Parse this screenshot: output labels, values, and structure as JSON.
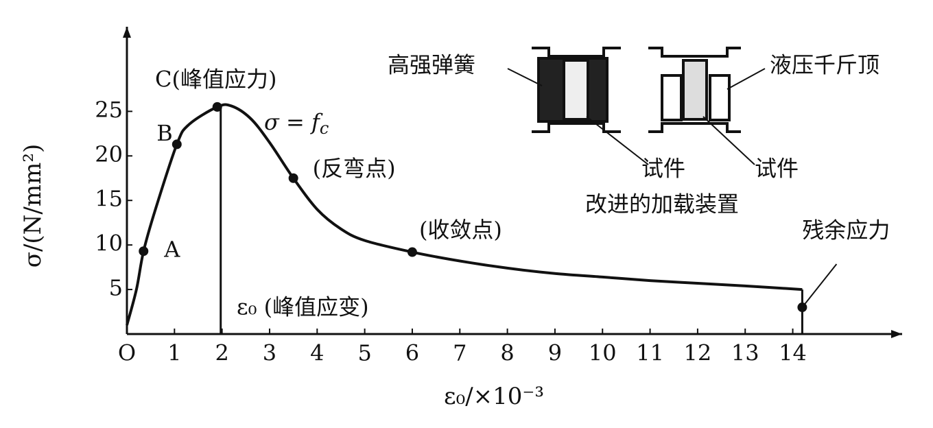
{
  "chart_data": {
    "type": "line",
    "x_label": "ε₀/×10⁻³",
    "y_label": "σ/(N/mm²)",
    "xlim": [
      0,
      16.3
    ],
    "ylim": [
      0,
      34.5
    ],
    "xticks": [
      {
        "value": 0,
        "label": "O"
      },
      1,
      2,
      3,
      4,
      5,
      6,
      7,
      8,
      9,
      10,
      11,
      12,
      13,
      14
    ],
    "yticks": [
      5,
      10,
      15,
      20,
      25
    ],
    "color": "#111111",
    "x": [
      0,
      0.2,
      0.35,
      0.6,
      1.05,
      1.3,
      1.9,
      2.2,
      2.6,
      3,
      3.5,
      4,
      4.5,
      5,
      6,
      7,
      8,
      9,
      10,
      11,
      12,
      13,
      14.2
    ],
    "values": [
      1,
      5,
      9.3,
      14,
      21.3,
      23.5,
      25.5,
      25.6,
      24.2,
      21.5,
      17.5,
      14,
      11.8,
      10.5,
      9.2,
      8.2,
      7.4,
      6.8,
      6.4,
      6,
      5.7,
      5.4,
      5
    ],
    "points": [
      {
        "label": "A",
        "x": 0.35,
        "y": 9.3
      },
      {
        "label": "B",
        "x": 1.05,
        "y": 21.3
      },
      {
        "label": "C(峰值应力)",
        "x": 1.9,
        "y": 25.5
      },
      {
        "label": "(反弯点)",
        "x": 3.5,
        "y": 17.5
      },
      {
        "label": "(收敛点)",
        "x": 6,
        "y": 9.2
      },
      {
        "label": "残余应力",
        "x": 14.2,
        "y": 3
      }
    ],
    "sigma_label": "σ = f",
    "sigma_sub": "c",
    "peak_strain_label": "ε₀ (峰值应变)",
    "inset": {
      "spring": "高强弹簧",
      "jack": "液压千斤顶",
      "specimen_left": "试件",
      "specimen_right": "试件",
      "caption": "改进的加载装置"
    }
  }
}
